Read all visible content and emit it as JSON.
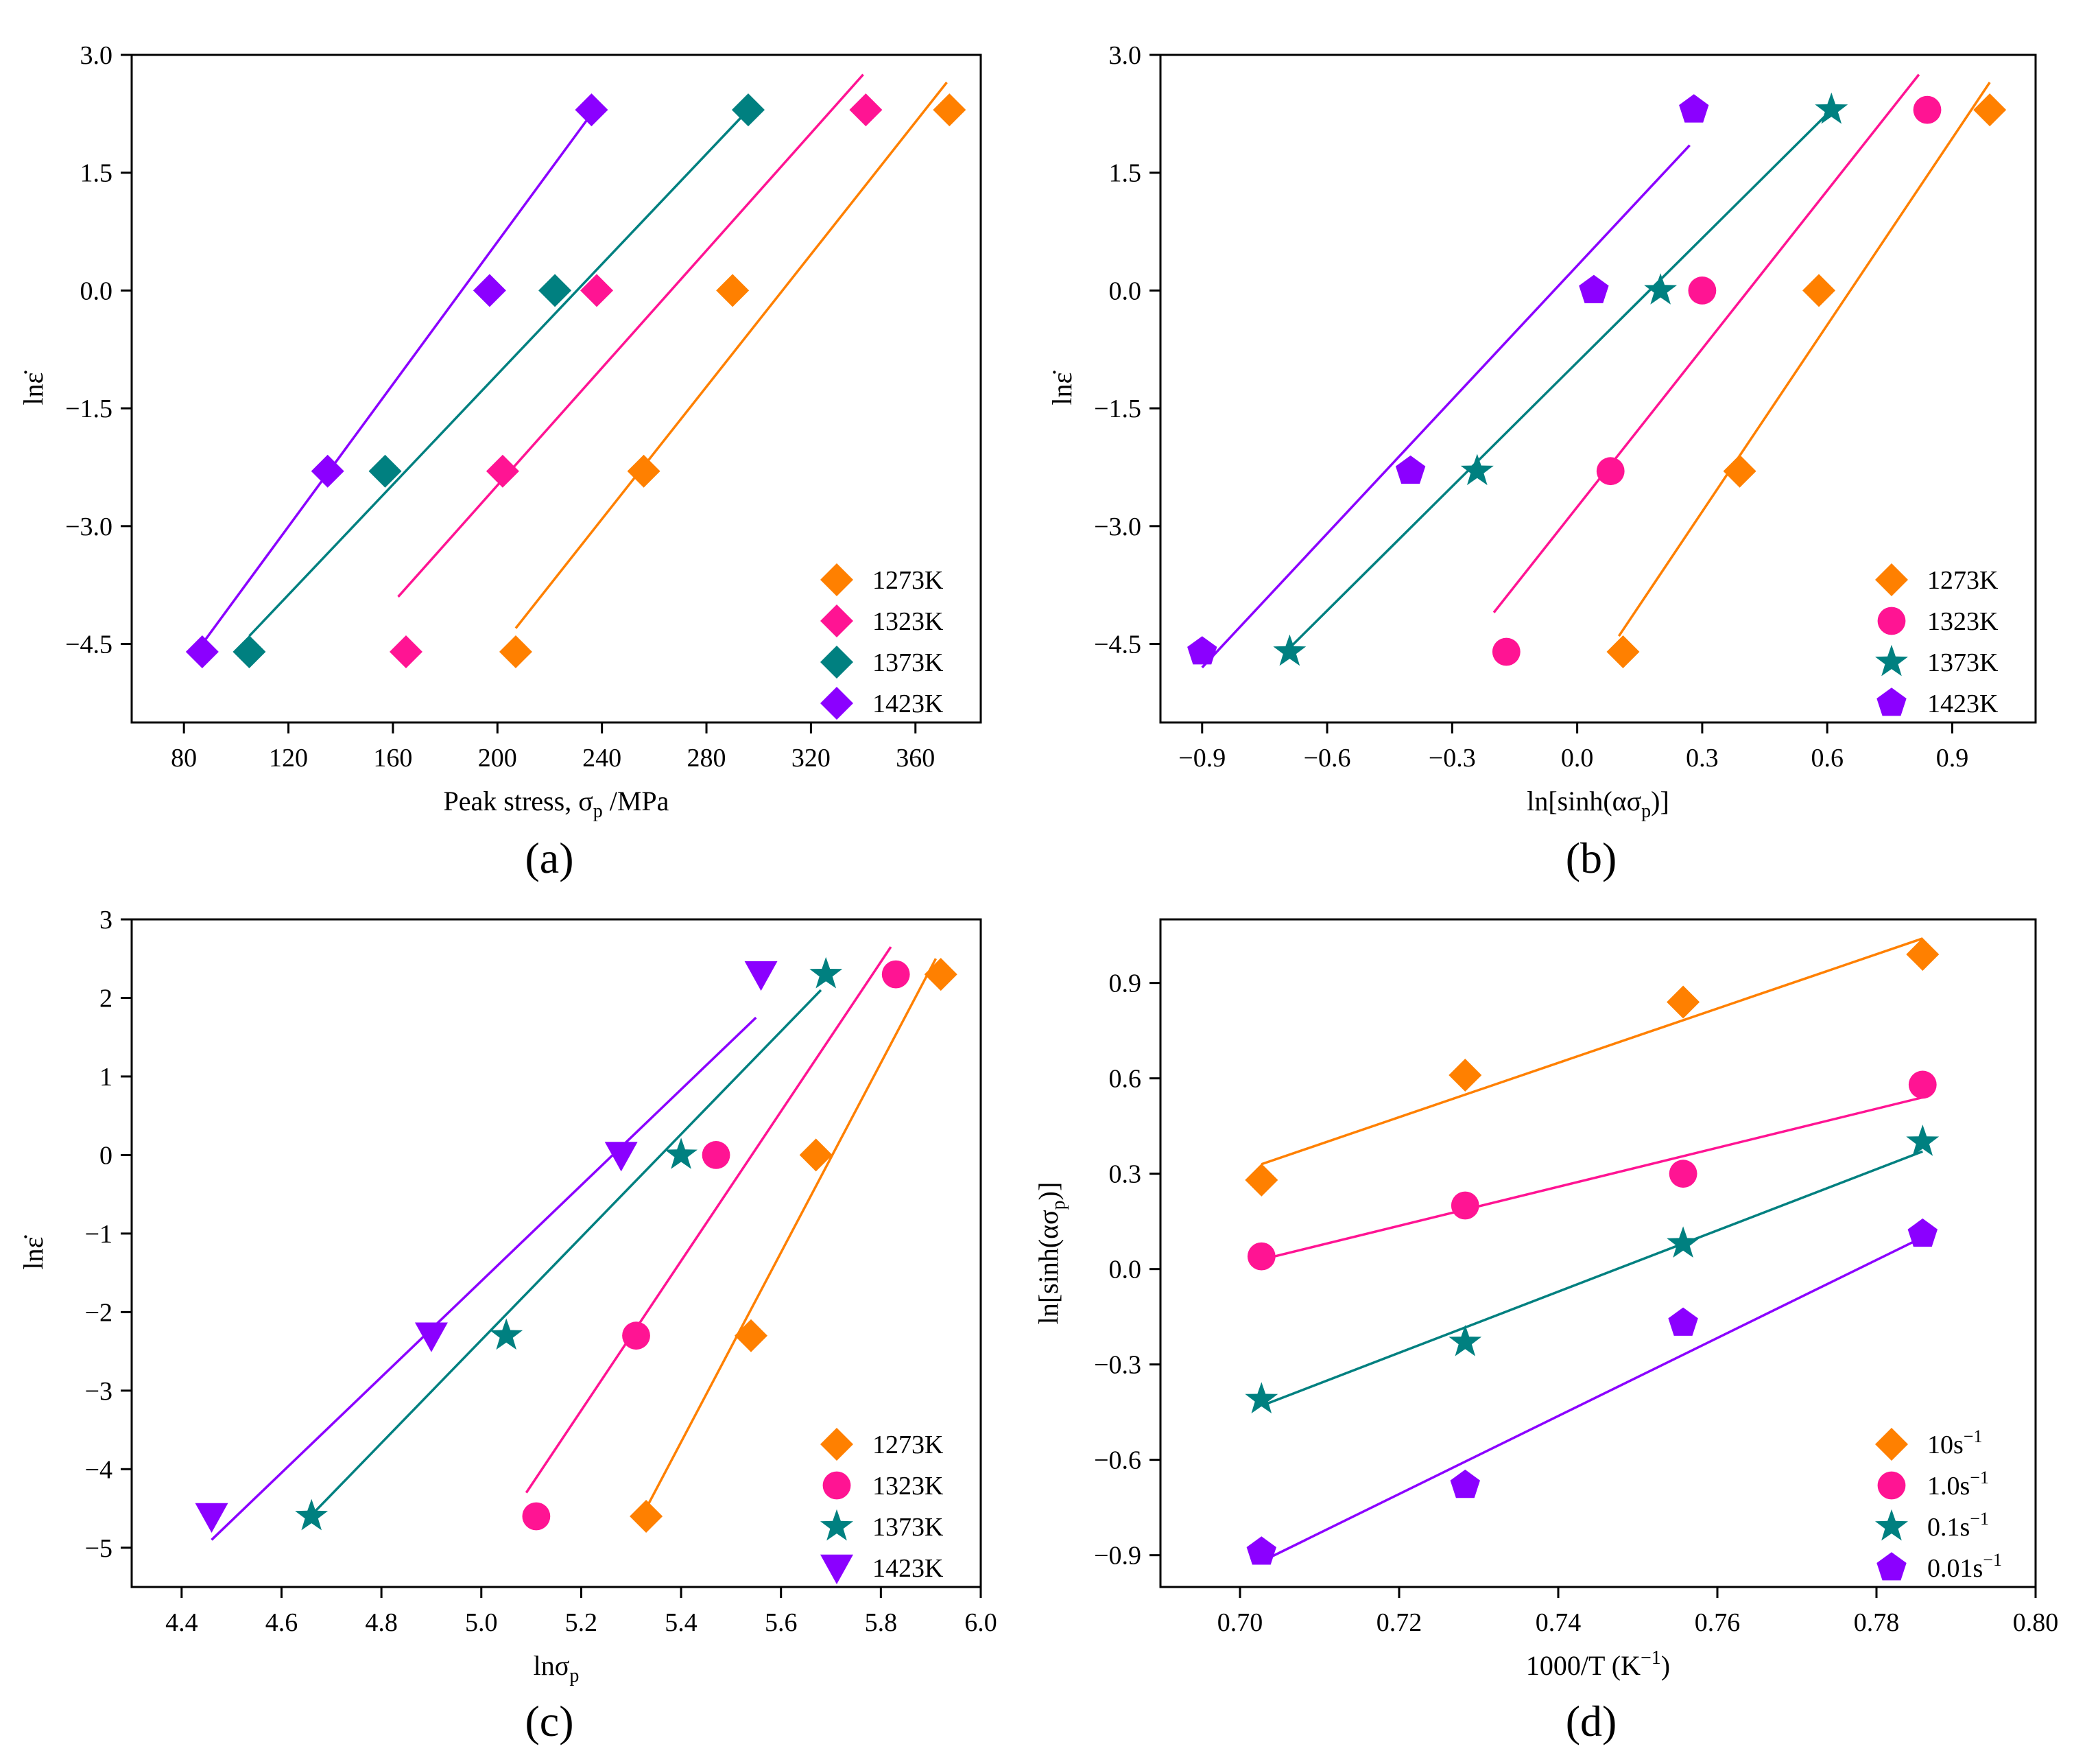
{
  "figure": {
    "panels": [
      {
        "id": "a",
        "caption": "(a)",
        "xlabel": "Peak stress, σ",
        "xlabel_sub": "p",
        "xlabel_tail": " /MPa",
        "ylabel": "lnε̇",
        "xlim": [
          60,
          385
        ],
        "ylim": [
          -5.5,
          3.0
        ],
        "xticks": [
          "80",
          "120",
          "160",
          "200",
          "240",
          "280",
          "320",
          "360"
        ],
        "yticks": [
          "3.0",
          "1.5",
          "0.0",
          "−1.5",
          "−3.0",
          "−4.5"
        ],
        "legend": [
          "1273K",
          "1323K",
          "1373K",
          "1423K"
        ]
      },
      {
        "id": "b",
        "caption": "(b)",
        "xlabel": "ln[sinh(ασ",
        "xlabel_sub": "p",
        "xlabel_tail": ")]",
        "ylabel": "lnε̇",
        "xlim": [
          -1.0,
          1.1
        ],
        "ylim": [
          -5.5,
          3.0
        ],
        "xticks": [
          "−0.9",
          "−0.6",
          "−0.3",
          "0.0",
          "0.3",
          "0.6",
          "0.9"
        ],
        "yticks": [
          "3.0",
          "1.5",
          "0.0",
          "−1.5",
          "−3.0",
          "−4.5"
        ],
        "legend": [
          "1273K",
          "1323K",
          "1373K",
          "1423K"
        ]
      },
      {
        "id": "c",
        "caption": "(c)",
        "xlabel": "lnσ",
        "xlabel_sub": "p",
        "xlabel_tail": "",
        "ylabel": "lnε̇",
        "xlim": [
          4.3,
          6.0
        ],
        "ylim": [
          -5.5,
          3.0
        ],
        "xticks": [
          "4.4",
          "4.6",
          "4.8",
          "5.0",
          "5.2",
          "5.4",
          "5.6",
          "5.8",
          "6.0"
        ],
        "yticks": [
          "3",
          "2",
          "1",
          "0",
          "−1",
          "−2",
          "−3",
          "−4",
          "−5"
        ],
        "legend": [
          "1273K",
          "1323K",
          "1373K",
          "1423K"
        ]
      },
      {
        "id": "d",
        "caption": "(d)",
        "xlabel": "1000/T (K",
        "xlabel_sup": "−1",
        "xlabel_tail": ")",
        "ylabel": "ln[sinh(ασ",
        "ylabel_sub": "p",
        "ylabel_tail": ")]",
        "xlim": [
          0.69,
          0.8
        ],
        "ylim": [
          -1.0,
          1.1
        ],
        "xticks": [
          "0.70",
          "0.72",
          "0.74",
          "0.76",
          "0.78",
          "0.80"
        ],
        "yticks": [
          "0.9",
          "0.6",
          "0.3",
          "0.0",
          "−0.3",
          "−0.6",
          "−0.9"
        ],
        "legend": [
          "10s",
          "1.0s",
          "0.1s",
          "0.01s"
        ],
        "legend_sup": "−1"
      }
    ]
  },
  "colors": {
    "orange": "#ff8000",
    "pink": "#ff1493",
    "teal": "#008080",
    "purple": "#8b00ff"
  },
  "chart_data": [
    {
      "type": "scatter",
      "panel": "a",
      "xlabel": "Peak stress, σp /MPa",
      "ylabel": "lnε̇",
      "xlim": [
        60,
        385
      ],
      "ylim": [
        -5.5,
        3.0
      ],
      "series": [
        {
          "name": "1273K",
          "marker": "diamond",
          "color": "#ff8000",
          "x": [
            207,
            256,
            290,
            373
          ],
          "y": [
            -4.6,
            -2.3,
            0.0,
            2.3
          ],
          "fit": {
            "x": [
              207,
              372
            ],
            "y": [
              -4.3,
              2.65
            ]
          }
        },
        {
          "name": "1323K",
          "marker": "diamond",
          "color": "#ff1493",
          "x": [
            165,
            202,
            238,
            341
          ],
          "y": [
            -4.6,
            -2.3,
            0.0,
            2.3
          ],
          "fit": {
            "x": [
              162,
              340
            ],
            "y": [
              -3.9,
              2.75
            ]
          }
        },
        {
          "name": "1373K",
          "marker": "diamond",
          "color": "#008080",
          "x": [
            105,
            157,
            222,
            296
          ],
          "y": [
            -4.6,
            -2.3,
            0.0,
            2.3
          ],
          "fit": {
            "x": [
              105,
              296
            ],
            "y": [
              -4.4,
              2.3
            ]
          }
        },
        {
          "name": "1423K",
          "marker": "diamond",
          "color": "#8b00ff",
          "x": [
            87,
            135,
            197,
            236
          ],
          "y": [
            -4.6,
            -2.3,
            0.0,
            2.3
          ],
          "fit": {
            "x": [
              87,
              236
            ],
            "y": [
              -4.5,
              2.25
            ]
          }
        }
      ]
    },
    {
      "type": "scatter",
      "panel": "b",
      "xlabel": "ln[sinh(ασp)]",
      "ylabel": "lnε̇",
      "xlim": [
        -1.0,
        1.1
      ],
      "ylim": [
        -5.5,
        3.0
      ],
      "series": [
        {
          "name": "1273K",
          "marker": "diamond",
          "color": "#ff8000",
          "x": [
            0.11,
            0.39,
            0.58,
            0.99
          ],
          "y": [
            -4.6,
            -2.3,
            0.0,
            2.3
          ],
          "fit": {
            "x": [
              0.1,
              0.99
            ],
            "y": [
              -4.4,
              2.65
            ]
          }
        },
        {
          "name": "1323K",
          "marker": "circle",
          "color": "#ff1493",
          "x": [
            -0.17,
            0.08,
            0.3,
            0.84
          ],
          "y": [
            -4.6,
            -2.3,
            0.0,
            2.3
          ],
          "fit": {
            "x": [
              -0.2,
              0.82
            ],
            "y": [
              -4.1,
              2.75
            ]
          }
        },
        {
          "name": "1373K",
          "marker": "star",
          "color": "#008080",
          "x": [
            -0.69,
            -0.24,
            0.2,
            0.61
          ],
          "y": [
            -4.6,
            -2.3,
            0.0,
            2.3
          ],
          "fit": {
            "x": [
              -0.69,
              0.61
            ],
            "y": [
              -4.55,
              2.3
            ]
          }
        },
        {
          "name": "1423K",
          "marker": "pentagon",
          "color": "#8b00ff",
          "x": [
            -0.9,
            -0.4,
            0.04,
            0.28
          ],
          "y": [
            -4.6,
            -2.3,
            0.0,
            2.3
          ],
          "fit": {
            "x": [
              -0.9,
              0.27
            ],
            "y": [
              -4.8,
              1.85
            ]
          }
        }
      ]
    },
    {
      "type": "scatter",
      "panel": "c",
      "xlabel": "lnσp",
      "ylabel": "lnε̇",
      "xlim": [
        4.3,
        6.0
      ],
      "ylim": [
        -5.5,
        3.0
      ],
      "series": [
        {
          "name": "1273K",
          "marker": "diamond",
          "color": "#ff8000",
          "x": [
            5.33,
            5.54,
            5.67,
            5.92
          ],
          "y": [
            -4.6,
            -2.3,
            0.0,
            2.3
          ],
          "fit": {
            "x": [
              5.33,
              5.91
            ],
            "y": [
              -4.5,
              2.5
            ]
          }
        },
        {
          "name": "1323K",
          "marker": "circle",
          "color": "#ff1493",
          "x": [
            5.11,
            5.31,
            5.47,
            5.83
          ],
          "y": [
            -4.6,
            -2.3,
            0.0,
            2.3
          ],
          "fit": {
            "x": [
              5.09,
              5.82
            ],
            "y": [
              -4.3,
              2.65
            ]
          }
        },
        {
          "name": "1373K",
          "marker": "star",
          "color": "#008080",
          "x": [
            4.66,
            5.05,
            5.4,
            5.69
          ],
          "y": [
            -4.6,
            -2.3,
            0.0,
            2.3
          ],
          "fit": {
            "x": [
              4.65,
              5.68
            ],
            "y": [
              -4.65,
              2.1
            ]
          }
        },
        {
          "name": "1423K",
          "marker": "triangle-down",
          "color": "#8b00ff",
          "x": [
            4.46,
            4.9,
            5.28,
            5.56
          ],
          "y": [
            -4.6,
            -2.3,
            0.0,
            2.3
          ],
          "fit": {
            "x": [
              4.46,
              5.55
            ],
            "y": [
              -4.9,
              1.75
            ]
          }
        }
      ]
    },
    {
      "type": "scatter",
      "panel": "d",
      "xlabel": "1000/T (K−1)",
      "ylabel": "ln[sinh(ασp)]",
      "xlim": [
        0.69,
        0.8
      ],
      "ylim": [
        -1.0,
        1.1
      ],
      "series": [
        {
          "name": "10s−1",
          "marker": "diamond",
          "color": "#ff8000",
          "x": [
            0.7027,
            0.7283,
            0.7557,
            0.7858
          ],
          "y": [
            0.28,
            0.61,
            0.84,
            0.99
          ],
          "fit": {
            "x": [
              0.7027,
              0.7858
            ],
            "y": [
              0.33,
              1.04
            ]
          }
        },
        {
          "name": "1.0s−1",
          "marker": "circle",
          "color": "#ff1493",
          "x": [
            0.7027,
            0.7283,
            0.7557,
            0.7858
          ],
          "y": [
            0.04,
            0.2,
            0.3,
            0.58
          ],
          "fit": {
            "x": [
              0.7027,
              0.7858
            ],
            "y": [
              0.03,
              0.54
            ]
          }
        },
        {
          "name": "0.1s−1",
          "marker": "star",
          "color": "#008080",
          "x": [
            0.7027,
            0.7283,
            0.7557,
            0.7858
          ],
          "y": [
            -0.41,
            -0.23,
            0.08,
            0.4
          ],
          "fit": {
            "x": [
              0.7027,
              0.7858
            ],
            "y": [
              -0.43,
              0.37
            ]
          }
        },
        {
          "name": "0.01s−1",
          "marker": "pentagon",
          "color": "#8b00ff",
          "x": [
            0.7027,
            0.7283,
            0.7557,
            0.7858
          ],
          "y": [
            -0.89,
            -0.68,
            -0.17,
            0.11
          ],
          "fit": {
            "x": [
              0.7027,
              0.7858
            ],
            "y": [
              -0.92,
              0.1
            ]
          }
        }
      ]
    }
  ]
}
